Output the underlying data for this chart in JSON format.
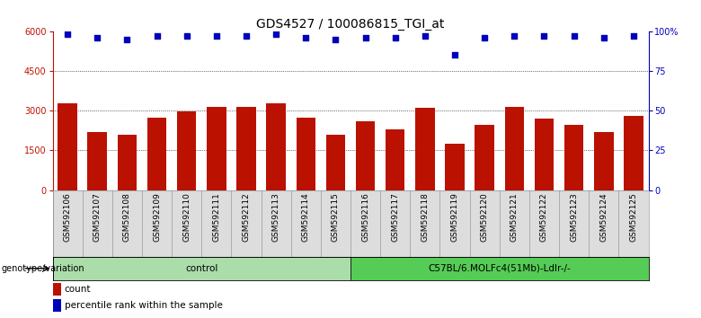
{
  "title": "GDS4527 / 100086815_TGI_at",
  "samples": [
    "GSM592106",
    "GSM592107",
    "GSM592108",
    "GSM592109",
    "GSM592110",
    "GSM592111",
    "GSM592112",
    "GSM592113",
    "GSM592114",
    "GSM592115",
    "GSM592116",
    "GSM592117",
    "GSM592118",
    "GSM592119",
    "GSM592120",
    "GSM592121",
    "GSM592122",
    "GSM592123",
    "GSM592124",
    "GSM592125"
  ],
  "counts": [
    3280,
    2200,
    2100,
    2750,
    2980,
    3150,
    3150,
    3280,
    2750,
    2100,
    2600,
    2300,
    3100,
    1750,
    2450,
    3150,
    2700,
    2450,
    2200,
    2800
  ],
  "percentile_ranks": [
    98,
    96,
    95,
    97,
    97,
    97,
    97,
    98,
    96,
    95,
    96,
    96,
    97,
    85,
    96,
    97,
    97,
    97,
    96,
    97
  ],
  "control_count": 10,
  "group1_label": "control",
  "group2_label": "C57BL/6.MOLFc4(51Mb)-Ldlr-/-",
  "group1_color": "#aaddaa",
  "group2_color": "#55cc55",
  "bar_color": "#BB1100",
  "dot_color": "#0000BB",
  "ylim_left": [
    0,
    6000
  ],
  "ylim_right": [
    0,
    100
  ],
  "yticks_left": [
    0,
    1500,
    3000,
    4500,
    6000
  ],
  "yticks_right": [
    0,
    25,
    50,
    75,
    100
  ],
  "grid_values": [
    1500,
    3000,
    4500
  ],
  "bar_width": 0.65,
  "dot_marker": "s",
  "dot_size": 18,
  "bar_color_hex": "#BB1100",
  "dot_color_hex": "#0000BB",
  "legend_count_label": "count",
  "legend_pct_label": "percentile rank within the sample",
  "bg_color": "#DDDDDD",
  "annotation_label": "genotype/variation",
  "title_fontsize": 10,
  "tick_fontsize": 7,
  "label_fontsize": 7.5,
  "annot_fontsize": 7
}
